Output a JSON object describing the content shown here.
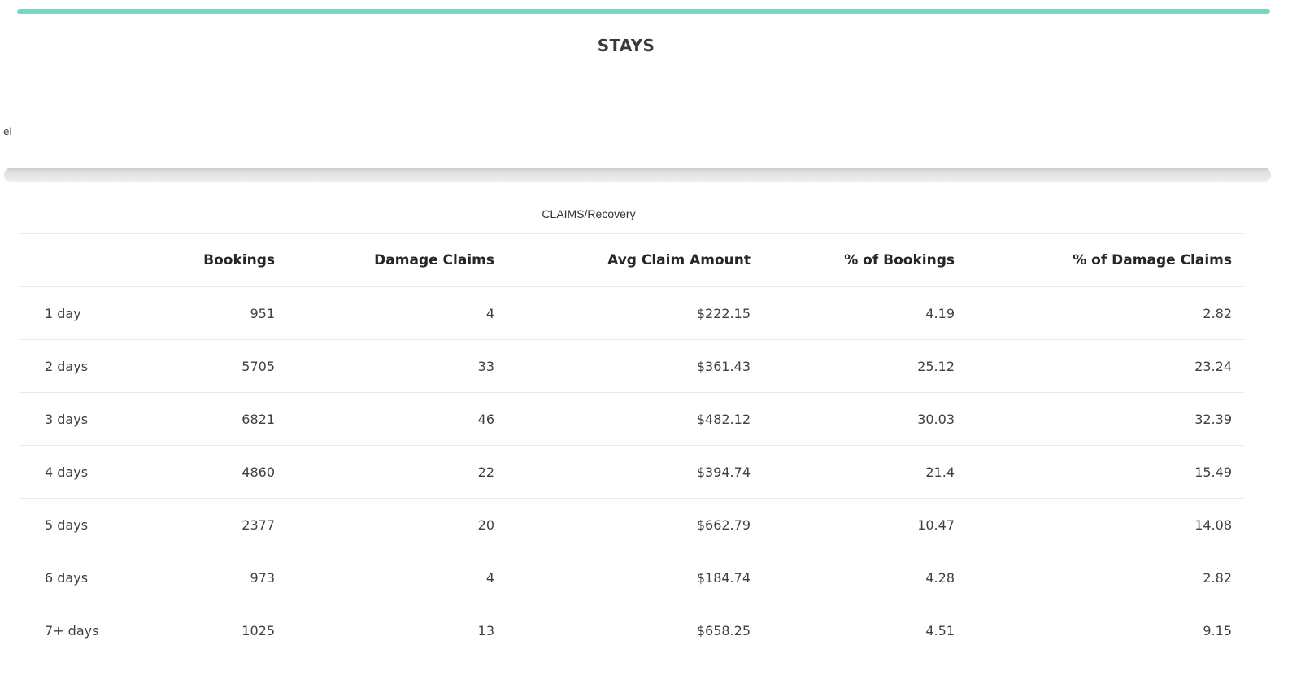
{
  "page": {
    "title": "STAYS",
    "partial_left_label": "el"
  },
  "colors": {
    "accent_teal": "#7cd4c0"
  },
  "icons": {
    "horizontal_scrollbar": "scrollbar-thumb"
  },
  "table": {
    "caption": "CLAIMS/Recovery",
    "columns": [
      "",
      "Bookings",
      "Damage Claims",
      "Avg Claim Amount",
      "% of Bookings",
      "% of Damage Claims"
    ],
    "rows": [
      {
        "cells": [
          "1 day",
          "951",
          "4",
          "$222.15",
          "4.19",
          "2.82"
        ]
      },
      {
        "cells": [
          "2 days",
          "5705",
          "33",
          "$361.43",
          "25.12",
          "23.24"
        ]
      },
      {
        "cells": [
          "3 days",
          "6821",
          "46",
          "$482.12",
          "30.03",
          "32.39"
        ]
      },
      {
        "cells": [
          "4 days",
          "4860",
          "22",
          "$394.74",
          "21.4",
          "15.49"
        ]
      },
      {
        "cells": [
          "5 days",
          "2377",
          "20",
          "$662.79",
          "10.47",
          "14.08"
        ]
      },
      {
        "cells": [
          "6 days",
          "973",
          "4",
          "$184.74",
          "4.28",
          "2.82"
        ]
      },
      {
        "cells": [
          "7+ days",
          "1025",
          "13",
          "$658.25",
          "4.51",
          "9.15"
        ]
      }
    ]
  }
}
